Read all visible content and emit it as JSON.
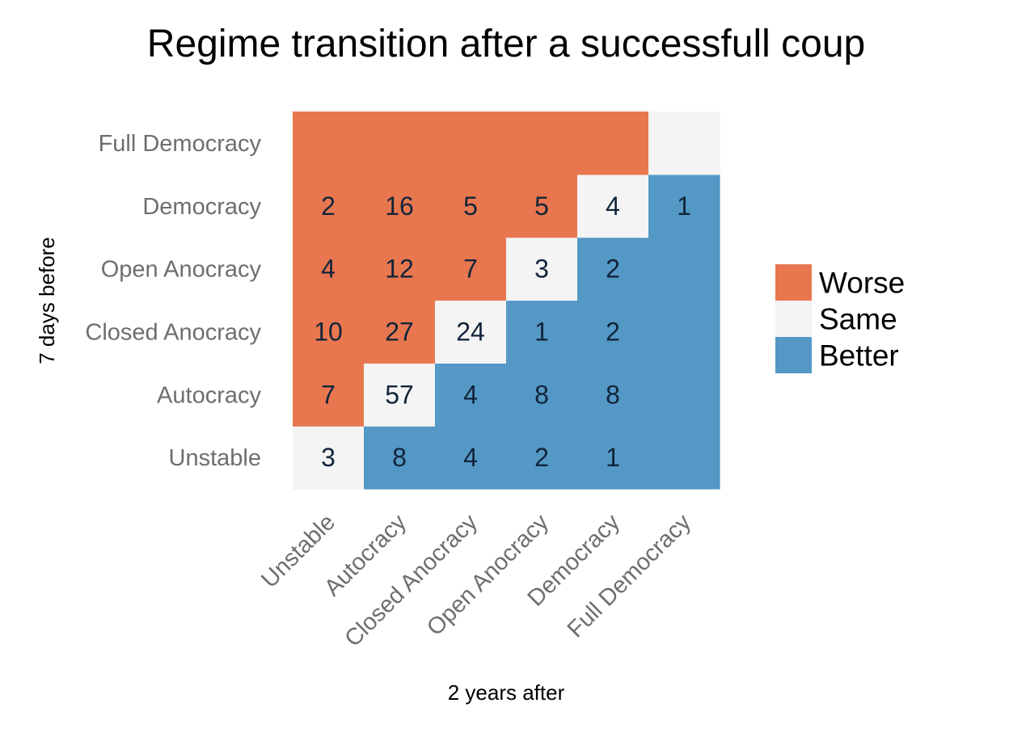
{
  "chart_data": {
    "type": "heatmap",
    "title": "Regime transition after a successfull coup",
    "xlabel": "2 years after",
    "ylabel": "7 days before",
    "x_categories": [
      "Unstable",
      "Autocracy",
      "Closed Anocracy",
      "Open Anocracy",
      "Democracy",
      "Full Democracy"
    ],
    "y_categories": [
      "Unstable",
      "Autocracy",
      "Closed Anocracy",
      "Open Anocracy",
      "Democracy",
      "Full Democracy"
    ],
    "values": [
      [
        3,
        8,
        4,
        2,
        1,
        null
      ],
      [
        7,
        57,
        4,
        8,
        8,
        null
      ],
      [
        10,
        27,
        24,
        1,
        2,
        null
      ],
      [
        4,
        12,
        7,
        3,
        2,
        null
      ],
      [
        2,
        16,
        5,
        5,
        4,
        1
      ],
      [
        null,
        null,
        null,
        null,
        null,
        null
      ]
    ],
    "legend": {
      "position": "right",
      "entries": [
        {
          "label": "Worse",
          "color": "#E8774F"
        },
        {
          "label": "Same",
          "color": "#F4F4F4"
        },
        {
          "label": "Better",
          "color": "#5498C6"
        }
      ]
    },
    "colors": {
      "worse": "#E8774F",
      "same": "#F4F4F4",
      "better": "#5498C6"
    },
    "grid": false
  }
}
